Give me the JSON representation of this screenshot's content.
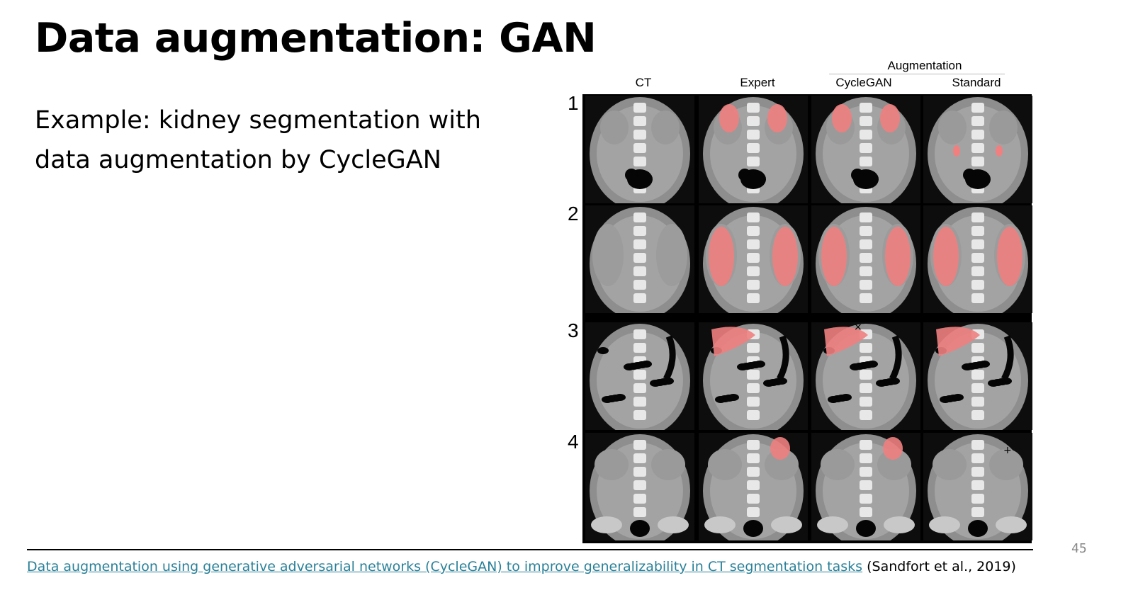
{
  "slide": {
    "title": "Data augmentation: GAN",
    "body_line_1": "Example: kidney segmentation with",
    "body_line_2": "data augmentation by CycleGAN",
    "page_number": "45"
  },
  "figure": {
    "group_header": "Augmentation",
    "columns": [
      "CT",
      "Expert",
      "CycleGAN",
      "Standard"
    ],
    "rows": [
      "1",
      "2",
      "3",
      "4"
    ],
    "overlay_color": "#f08080",
    "markers": {
      "row3_cyclegan": "×",
      "row4_standard": "+"
    }
  },
  "footer": {
    "link_text": "Data augmentation using generative adversarial networks (CycleGAN) to improve generalizability in CT segmentation tasks",
    "citation": "(Sandfort et al., 2019)"
  }
}
